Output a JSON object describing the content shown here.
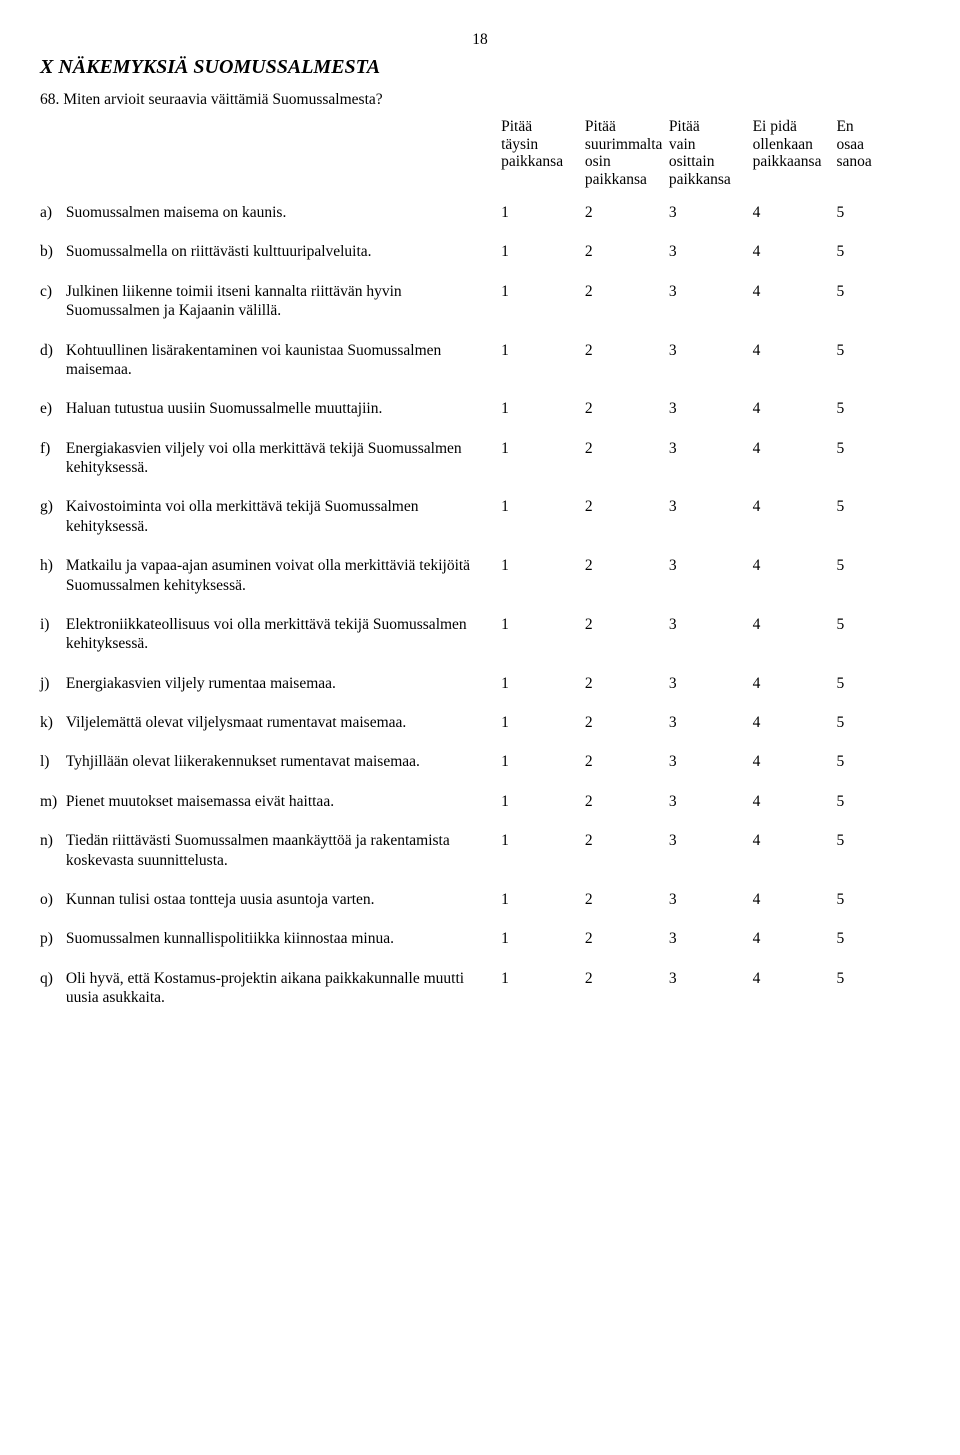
{
  "page_number": "18",
  "section_title": "X NÄKEMYKSIÄ SUOMUSSALMESTA",
  "question_number": "68.",
  "question_text": "Miten arvioit seuraavia väittämiä Suomussalmesta?",
  "headers": {
    "c1": [
      "Pitää",
      "täysin",
      "paikkansa"
    ],
    "c2": [
      "Pitää",
      "suurimmalta",
      "osin",
      "paikkansa"
    ],
    "c3": [
      "Pitää",
      "vain",
      "osittain",
      "paikkansa"
    ],
    "c4": [
      "Ei pidä",
      "ollenkaan",
      "paikkaansa"
    ],
    "c5": [
      "En",
      "osaa",
      "sanoa"
    ]
  },
  "option_values": [
    "1",
    "2",
    "3",
    "4",
    "5"
  ],
  "rows": [
    {
      "letter": "a)",
      "text": "Suomussalmen maisema on kaunis."
    },
    {
      "letter": "b)",
      "text": "Suomussalmella on riittävästi kulttuuripalveluita."
    },
    {
      "letter": "c)",
      "text": "Julkinen liikenne toimii itseni kannalta riittävän hyvin Suomussalmen ja Kajaanin välillä."
    },
    {
      "letter": "d)",
      "text": "Kohtuullinen lisärakentaminen voi kaunistaa Suomussalmen maisemaa."
    },
    {
      "letter": "e)",
      "text": "Haluan tutustua uusiin Suomussalmelle muuttajiin."
    },
    {
      "letter": "f)",
      "text": "Energiakasvien viljely voi olla merkittävä tekijä Suomussalmen kehityksessä."
    },
    {
      "letter": "g)",
      "text": "Kaivostoiminta voi olla merkittävä tekijä Suomussalmen kehityksessä."
    },
    {
      "letter": "h)",
      "text": "Matkailu ja vapaa-ajan asuminen voivat olla merkittäviä tekijöitä Suomussalmen kehityksessä."
    },
    {
      "letter": "i)",
      "text": "Elektroniikkateollisuus voi olla merkittävä tekijä Suomussalmen kehityksessä."
    },
    {
      "letter": "j)",
      "text": "Energiakasvien viljely rumentaa maisemaa."
    },
    {
      "letter": "k)",
      "text": "Viljelemättä olevat viljelysmaat rumentavat maisemaa."
    },
    {
      "letter": "l)",
      "text": "Tyhjillään olevat liikerakennukset rumentavat maisemaa."
    },
    {
      "letter": "m)",
      "text": "Pienet muutokset maisemassa eivät haittaa."
    },
    {
      "letter": "n)",
      "text": "Tiedän riittävästi Suomussalmen maankäyttöä ja rakentamista koskevasta suunnittelusta."
    },
    {
      "letter": "o)",
      "text": "Kunnan tulisi ostaa tontteja uusia asuntoja varten."
    },
    {
      "letter": "p)",
      "text": "Suomussalmen kunnallispolitiikka kiinnostaa minua."
    },
    {
      "letter": "q)",
      "text": "Oli hyvä, että Kostamus-projektin aikana paikkakunnalle muutti uusia asukkaita."
    }
  ]
}
